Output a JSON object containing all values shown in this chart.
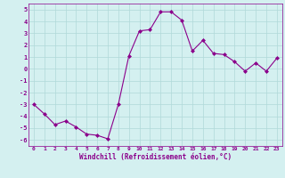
{
  "x": [
    0,
    1,
    2,
    3,
    4,
    5,
    6,
    7,
    8,
    9,
    10,
    11,
    12,
    13,
    14,
    15,
    16,
    17,
    18,
    19,
    20,
    21,
    22,
    23
  ],
  "y": [
    -3.0,
    -3.8,
    -4.7,
    -4.4,
    -4.9,
    -5.5,
    -5.6,
    -5.9,
    -3.0,
    1.1,
    3.2,
    3.3,
    4.8,
    4.8,
    4.1,
    1.5,
    2.4,
    1.3,
    1.2,
    0.6,
    -0.2,
    0.5,
    -0.2,
    0.9
  ],
  "line_color": "#8B008B",
  "marker": "D",
  "marker_size": 2,
  "bg_color": "#d4f0f0",
  "grid_color": "#b0d8d8",
  "xlabel": "Windchill (Refroidissement éolien,°C)",
  "xlabel_color": "#8B008B",
  "xtick_labels": [
    "0",
    "1",
    "2",
    "3",
    "4",
    "5",
    "6",
    "7",
    "8",
    "9",
    "10",
    "11",
    "12",
    "13",
    "14",
    "15",
    "16",
    "17",
    "18",
    "19",
    "20",
    "21",
    "22",
    "23"
  ],
  "ylim": [
    -6.5,
    5.5
  ],
  "xlim": [
    -0.5,
    23.5
  ],
  "tick_color": "#8B008B",
  "font_family": "monospace"
}
